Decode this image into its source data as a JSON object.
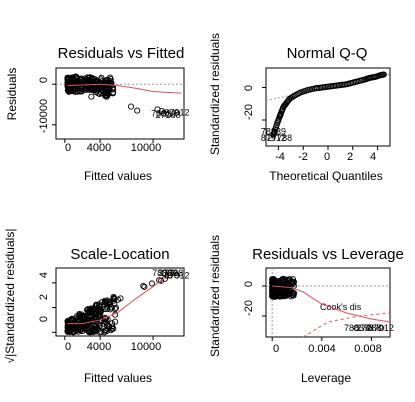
{
  "chart_data": [
    {
      "type": "scatter",
      "panel": "residuals-vs-fitted",
      "title": "Residuals vs Fitted",
      "xlabel": "Fitted values",
      "ylabel": "Residuals",
      "xlim": [
        -1000,
        13500
      ],
      "ylim": [
        -13500,
        4000
      ],
      "xticks": [
        0,
        4000,
        10000
      ],
      "yticks": [
        -10000,
        0
      ],
      "reference_line": 0,
      "smoother": [
        [
          300,
          -300
        ],
        [
          2000,
          -200
        ],
        [
          4000,
          0
        ],
        [
          6000,
          -300
        ],
        [
          8000,
          -1000
        ],
        [
          10000,
          -1800
        ],
        [
          11500,
          -2000
        ],
        [
          13200,
          -2200
        ]
      ],
      "labelled_points": [
        {
          "x": 11200,
          "y": -7200,
          "label": "78839"
        },
        {
          "x": 11700,
          "y": -7600,
          "label": "27788"
        },
        {
          "x": 12700,
          "y": -7000,
          "label": "87912"
        }
      ],
      "outliers": [
        [
          7500,
          -5500
        ],
        [
          8200,
          -6500
        ],
        [
          10500,
          -6200
        ],
        [
          11000,
          -6600
        ]
      ]
    },
    {
      "type": "scatter",
      "panel": "normal-qq",
      "title": "Normal Q-Q",
      "xlabel": "Theoretical Quantiles",
      "ylabel": "Standardized residuals",
      "xlim": [
        -5,
        5
      ],
      "ylim": [
        -36,
        12
      ],
      "xticks": [
        -4,
        -2,
        0,
        2,
        4
      ],
      "yticks": [
        -20,
        0
      ],
      "labelled_points": [
        {
          "x": -4.4,
          "y": -27,
          "label": "78839"
        },
        {
          "x": -4.4,
          "y": -31,
          "label": "87912"
        },
        {
          "x": -3.9,
          "y": -31,
          "label": "27788"
        }
      ],
      "qq_points": [
        [
          -4.4,
          -29
        ],
        [
          -4.3,
          -27
        ],
        [
          -4.1,
          -22
        ],
        [
          -3.9,
          -18
        ],
        [
          -3.8,
          -16
        ],
        [
          -3.6,
          -12
        ],
        [
          -3.4,
          -10
        ],
        [
          -3.1,
          -7
        ],
        [
          -2.7,
          -5
        ],
        [
          -2.2,
          -3
        ],
        [
          -1.6,
          -1.5
        ],
        [
          -1,
          -0.5
        ],
        [
          -0.5,
          0
        ],
        [
          0,
          0.5
        ],
        [
          0.5,
          1
        ],
        [
          1,
          1.5
        ],
        [
          1.5,
          2
        ],
        [
          2,
          3
        ],
        [
          2.5,
          4
        ],
        [
          3,
          5
        ],
        [
          3.4,
          6
        ],
        [
          3.8,
          6.5
        ],
        [
          4.2,
          7.5
        ],
        [
          4.5,
          8
        ]
      ],
      "reference_line": [
        [
          -5,
          -8
        ],
        [
          5,
          8
        ]
      ]
    },
    {
      "type": "scatter",
      "panel": "scale-location",
      "title": "Scale-Location",
      "xlabel": "Fitted values",
      "ylabel": "√|Standardized residuals|",
      "xlim": [
        -1000,
        13500
      ],
      "ylim": [
        -0.3,
        5.2
      ],
      "xticks": [
        0,
        4000,
        10000
      ],
      "yticks": [
        0,
        2,
        4
      ],
      "smoother": [
        [
          300,
          0.7
        ],
        [
          2000,
          0.7
        ],
        [
          4000,
          1.0
        ],
        [
          6000,
          1.6
        ],
        [
          8000,
          2.7
        ],
        [
          10000,
          3.7
        ],
        [
          11500,
          4.5
        ],
        [
          13000,
          4.9
        ]
      ],
      "labelled_points": [
        {
          "x": 11300,
          "y": 4.8,
          "label": "78839"
        },
        {
          "x": 12000,
          "y": 4.8,
          "label": "27788"
        },
        {
          "x": 12700,
          "y": 4.6,
          "label": "87912"
        }
      ]
    },
    {
      "type": "scatter",
      "panel": "residuals-vs-leverage",
      "title": "Residuals vs Leverage",
      "xlabel": "Leverage",
      "ylabel": "Standardized residuals",
      "xlim": [
        -0.0005,
        0.0095
      ],
      "ylim": [
        -34,
        12
      ],
      "xticks": [
        0.0,
        0.004,
        0.008
      ],
      "yticks": [
        -20,
        0
      ],
      "annotation": "Cook's dis",
      "smoother": [
        [
          0,
          0
        ],
        [
          0.0015,
          -1
        ],
        [
          0.0025,
          -4
        ],
        [
          0.004,
          -12
        ],
        [
          0.006,
          -18
        ],
        [
          0.008,
          -22
        ],
        [
          0.0095,
          -24
        ]
      ],
      "labelled_points": [
        {
          "x": 0.0068,
          "y": -28,
          "label": "78839"
        },
        {
          "x": 0.0078,
          "y": -28,
          "label": "27788"
        },
        {
          "x": 0.0088,
          "y": -28,
          "label": "87912"
        }
      ]
    }
  ]
}
